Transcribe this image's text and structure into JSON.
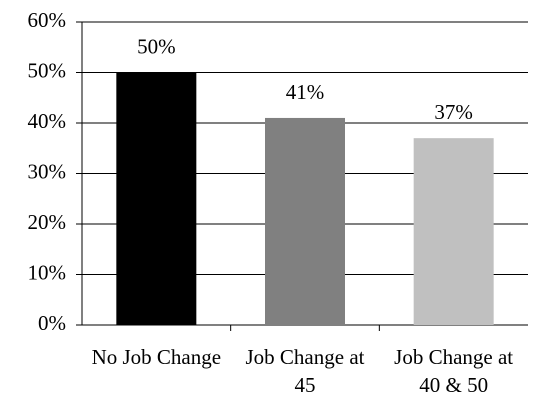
{
  "chart_data": {
    "type": "bar",
    "categories": [
      "No Job Change",
      "Job Change at 45",
      "Job Change at 40 & 50"
    ],
    "values": [
      50,
      41,
      37
    ],
    "value_labels": [
      "50%",
      "41%",
      "37%"
    ],
    "colors": [
      "#000000",
      "#808080",
      "#c0c0c0"
    ],
    "ylim": [
      0,
      60
    ],
    "yticks": [
      {
        "value": 0,
        "label": "0%"
      },
      {
        "value": 10,
        "label": "10%"
      },
      {
        "value": 20,
        "label": "20%"
      },
      {
        "value": 30,
        "label": "30%"
      },
      {
        "value": 40,
        "label": "40%"
      },
      {
        "value": 50,
        "label": "50%"
      },
      {
        "value": 60,
        "label": "60%"
      }
    ],
    "grid": true
  }
}
